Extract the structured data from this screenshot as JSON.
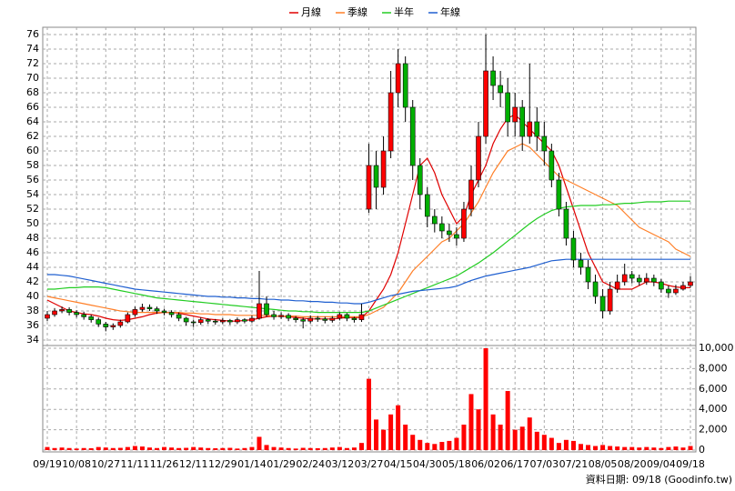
{
  "chart_data": {
    "type": "candlestick",
    "categories": [
      "09/19",
      null,
      null,
      null,
      "10/08",
      null,
      null,
      null,
      "10/27",
      null,
      null,
      null,
      "11/11",
      null,
      null,
      null,
      "11/26",
      null,
      null,
      null,
      "12/11",
      null,
      null,
      null,
      "12/29",
      null,
      null,
      null,
      "01/14",
      null,
      null,
      null,
      "01/29",
      null,
      null,
      null,
      "02/24",
      null,
      null,
      null,
      "03/12",
      null,
      null,
      null,
      "03/27",
      null,
      null,
      null,
      "04/15",
      null,
      null,
      null,
      "04/30",
      null,
      null,
      null,
      "05/18",
      null,
      null,
      null,
      "06/02",
      null,
      null,
      null,
      "06/17",
      null,
      null,
      null,
      "07/03",
      null,
      null,
      null,
      "07/21",
      null,
      null,
      null,
      "08/05",
      null,
      null,
      null,
      "08/20",
      null,
      null,
      null,
      "09/04",
      null,
      null,
      null,
      "09/18"
    ],
    "open": [
      37,
      37.5,
      38,
      38.2,
      37.8,
      37.5,
      37.2,
      36.8,
      36.2,
      35.8,
      36,
      36.5,
      37.5,
      38.2,
      38.5,
      38.3,
      38,
      37.8,
      37.5,
      37,
      36.5,
      36.4,
      36.8,
      36.6,
      36.5,
      36.7,
      36.5,
      36.8,
      36.6,
      37,
      39,
      37.5,
      37.2,
      37.4,
      37,
      36.8,
      36.6,
      37,
      36.9,
      36.7,
      37,
      37.5,
      37,
      36.8,
      52,
      58,
      55,
      60,
      68,
      72,
      66,
      58,
      54,
      51,
      50,
      49,
      48.5,
      48,
      52,
      56,
      62,
      71,
      69,
      68,
      64,
      66,
      62,
      64,
      62,
      60,
      56,
      52,
      48,
      45,
      44,
      42,
      40,
      38,
      41,
      42,
      43,
      42.5,
      42,
      42.5,
      42,
      41,
      40.5,
      41,
      41.5
    ],
    "high": [
      38,
      38.4,
      38.6,
      38.5,
      38.1,
      37.9,
      37.5,
      37.1,
      36.5,
      36.3,
      36.8,
      37.8,
      38.6,
      39,
      38.9,
      38.6,
      38.3,
      38.1,
      37.8,
      37.2,
      36.8,
      37.1,
      37,
      36.9,
      37,
      36.9,
      37.1,
      37,
      37.4,
      43.5,
      40,
      38,
      37.8,
      37.7,
      37.3,
      37.1,
      37.4,
      37.3,
      37.2,
      37.3,
      37.8,
      37.7,
      37.2,
      39,
      61,
      60,
      62,
      71,
      74,
      73,
      67,
      59,
      55,
      52,
      51,
      50,
      49.5,
      53,
      58,
      64,
      76,
      73,
      71,
      70,
      68,
      67,
      72,
      66,
      64,
      61,
      57,
      53,
      49,
      46,
      45,
      43,
      41,
      42,
      43,
      44.5,
      43.5,
      43,
      43.2,
      43,
      42.4,
      41.5,
      41.6,
      42,
      42.8
    ],
    "low": [
      36.6,
      37.2,
      37.7,
      37.4,
      37.1,
      36.8,
      36.4,
      35.8,
      35.2,
      35.4,
      35.7,
      36.3,
      37.2,
      37.9,
      38,
      37.6,
      37.4,
      37.1,
      36.6,
      36,
      35.8,
      36.1,
      36.2,
      36.1,
      36.2,
      36.1,
      36.2,
      36.3,
      36.4,
      36.8,
      37.2,
      36.8,
      36.9,
      36.6,
      36.4,
      35.6,
      36.3,
      36.5,
      36.3,
      36.4,
      36.7,
      36.6,
      36.4,
      36.5,
      51.5,
      52,
      54,
      59,
      66,
      64,
      56,
      52,
      49.5,
      48.8,
      48,
      47.5,
      47,
      47.5,
      51,
      55,
      61,
      67,
      66,
      62,
      62,
      60,
      61,
      60,
      58,
      55,
      51,
      47,
      44,
      43,
      41,
      39,
      37,
      37.5,
      40.5,
      41.5,
      41.8,
      41.5,
      41.6,
      41.4,
      40.5,
      39.8,
      40.2,
      40.8,
      41.2
    ],
    "close": [
      37.5,
      38,
      38.2,
      37.8,
      37.5,
      37.2,
      36.8,
      36.2,
      35.8,
      36,
      36.5,
      37.5,
      38.2,
      38.5,
      38.3,
      38,
      37.8,
      37.5,
      37,
      36.5,
      36.4,
      36.8,
      36.6,
      36.5,
      36.7,
      36.5,
      36.8,
      36.6,
      37,
      39,
      37.5,
      37.2,
      37.4,
      37,
      36.8,
      36.6,
      37,
      36.9,
      36.7,
      37,
      37.5,
      37,
      36.8,
      37.5,
      58,
      55,
      60,
      68,
      72,
      66,
      58,
      54,
      51,
      50,
      49,
      48.5,
      48,
      52,
      56,
      62,
      71,
      69,
      68,
      64,
      66,
      62,
      64,
      62,
      60,
      56,
      52,
      48,
      45,
      44,
      42,
      40,
      38,
      41,
      42,
      43,
      42.5,
      42,
      42.5,
      42,
      41,
      40.5,
      41,
      41.5,
      42
    ],
    "up_color": "#ff0000",
    "down_color": "#00b000",
    "ylim": [
      33.25,
      77
    ],
    "yticks": [
      34,
      36,
      38,
      40,
      42,
      44,
      46,
      48,
      50,
      52,
      54,
      56,
      58,
      60,
      62,
      64,
      66,
      68,
      70,
      72,
      74,
      76
    ],
    "grid": true,
    "series": [
      {
        "name": "月線",
        "color": "#e00000",
        "values": [
          39.5,
          39,
          38.5,
          38,
          37.8,
          37.6,
          37.5,
          37.3,
          37,
          36.8,
          36.7,
          36.8,
          37,
          37.2,
          37.5,
          37.7,
          37.8,
          37.8,
          37.7,
          37.5,
          37.3,
          37.1,
          36.9,
          36.8,
          36.7,
          36.6,
          36.6,
          36.7,
          36.8,
          37,
          37.2,
          37.3,
          37.3,
          37.2,
          37.1,
          37,
          36.9,
          36.9,
          36.9,
          36.9,
          37,
          37.1,
          37.1,
          37.1,
          38,
          39.5,
          41,
          43,
          46,
          50,
          54,
          58,
          59,
          57,
          54,
          52,
          50,
          51,
          54,
          56,
          58,
          61,
          63,
          64.5,
          65,
          64,
          63,
          62,
          61,
          60,
          58,
          55,
          52,
          49,
          46,
          44,
          42,
          41.5,
          41,
          41,
          41,
          41.5,
          42,
          42,
          41.8,
          41.5,
          41.3,
          41.2,
          41.2
        ]
      },
      {
        "name": "季線",
        "color": "#ff7f27",
        "values": [
          40,
          39.8,
          39.6,
          39.4,
          39.2,
          39,
          38.8,
          38.6,
          38.4,
          38.2,
          38,
          37.9,
          37.8,
          37.8,
          37.8,
          37.8,
          37.8,
          37.8,
          37.8,
          37.7,
          37.7,
          37.6,
          37.6,
          37.5,
          37.5,
          37.5,
          37.4,
          37.4,
          37.4,
          37.4,
          37.4,
          37.3,
          37.3,
          37.3,
          37.3,
          37.2,
          37.2,
          37.2,
          37.2,
          37.2,
          37.2,
          37.2,
          37.2,
          37.2,
          37.5,
          38,
          38.5,
          39.5,
          40.5,
          42,
          43.5,
          44.5,
          45.5,
          46.5,
          47.5,
          48,
          49,
          50,
          51.5,
          53,
          55,
          57,
          58.5,
          60,
          60.5,
          61,
          60.5,
          59.5,
          58.5,
          57.5,
          56.5,
          56,
          55.5,
          55,
          54.5,
          54,
          53.5,
          53,
          52.5,
          51.5,
          50.5,
          49.5,
          49,
          48.5,
          48,
          47.5,
          46.5,
          46,
          45.5
        ]
      },
      {
        "name": "半年",
        "color": "#22cc22",
        "values": [
          41,
          41,
          41.1,
          41.2,
          41.2,
          41.3,
          41.3,
          41.3,
          41.2,
          41,
          40.8,
          40.6,
          40.4,
          40.2,
          40,
          39.8,
          39.7,
          39.6,
          39.5,
          39.4,
          39.3,
          39.2,
          39.1,
          39,
          38.9,
          38.8,
          38.7,
          38.6,
          38.5,
          38.4,
          38.3,
          38.2,
          38.1,
          38,
          38,
          37.9,
          37.9,
          37.8,
          37.8,
          37.8,
          37.8,
          37.8,
          37.8,
          37.8,
          38,
          38.4,
          38.8,
          39.2,
          39.6,
          40,
          40.4,
          40.8,
          41.2,
          41.6,
          42,
          42.4,
          42.8,
          43.4,
          44,
          44.6,
          45.3,
          46,
          46.8,
          47.6,
          48.4,
          49.2,
          50,
          50.7,
          51.3,
          51.8,
          52.1,
          52.3,
          52.4,
          52.5,
          52.5,
          52.5,
          52.6,
          52.6,
          52.7,
          52.8,
          52.8,
          52.9,
          53,
          53,
          53,
          53.1,
          53.1,
          53.1,
          53.1
        ]
      },
      {
        "name": "年線",
        "color": "#1f5fd0",
        "values": [
          43,
          43,
          42.9,
          42.8,
          42.6,
          42.4,
          42.2,
          42,
          41.8,
          41.6,
          41.4,
          41.2,
          41,
          40.9,
          40.8,
          40.7,
          40.6,
          40.5,
          40.4,
          40.3,
          40.2,
          40.1,
          40,
          40,
          39.9,
          39.9,
          39.8,
          39.8,
          39.7,
          39.7,
          39.6,
          39.6,
          39.5,
          39.5,
          39.4,
          39.4,
          39.3,
          39.3,
          39.2,
          39.2,
          39.1,
          39.1,
          39,
          39,
          39.2,
          39.5,
          39.8,
          40.1,
          40.3,
          40.5,
          40.7,
          40.8,
          40.9,
          41,
          41.1,
          41.2,
          41.4,
          41.8,
          42.2,
          42.5,
          42.8,
          43,
          43.2,
          43.4,
          43.6,
          43.8,
          44,
          44.3,
          44.6,
          44.9,
          45,
          45.1,
          45.1,
          45.1,
          45.1,
          45.1,
          45.1,
          45.1,
          45.1,
          45.1,
          45.1,
          45.1,
          45.1,
          45.1,
          45.1,
          45.1,
          45.1,
          45.1,
          45.1
        ]
      }
    ],
    "volume": {
      "color": "#ff0000",
      "values": [
        300,
        200,
        250,
        200,
        150,
        200,
        180,
        300,
        250,
        200,
        220,
        300,
        400,
        350,
        250,
        200,
        300,
        250,
        200,
        220,
        300,
        250,
        200,
        180,
        200,
        220,
        150,
        200,
        300,
        1300,
        500,
        300,
        250,
        200,
        150,
        220,
        200,
        180,
        200,
        250,
        300,
        200,
        250,
        700,
        7000,
        3000,
        2000,
        3500,
        4400,
        2500,
        1500,
        1000,
        700,
        600,
        800,
        900,
        1200,
        2500,
        5500,
        4000,
        10000,
        3500,
        2500,
        5800,
        2000,
        2300,
        3200,
        1800,
        1500,
        1200,
        700,
        1000,
        900,
        600,
        500,
        400,
        500,
        400,
        350,
        300,
        300,
        250,
        300,
        250,
        200,
        300,
        350,
        250,
        400
      ],
      "ylim": [
        0,
        10000
      ],
      "yticks": [
        0,
        {
          "value": 2000,
          "label": "2,000"
        },
        {
          "value": 4000,
          "label": "4,000"
        },
        {
          "value": 6000,
          "label": "6,000"
        },
        {
          "value": 8000,
          "label": "8,000"
        },
        {
          "value": 10000,
          "label": "10,000"
        }
      ]
    },
    "source": "資料日期: 09/18 (Goodinfo.tw)"
  }
}
